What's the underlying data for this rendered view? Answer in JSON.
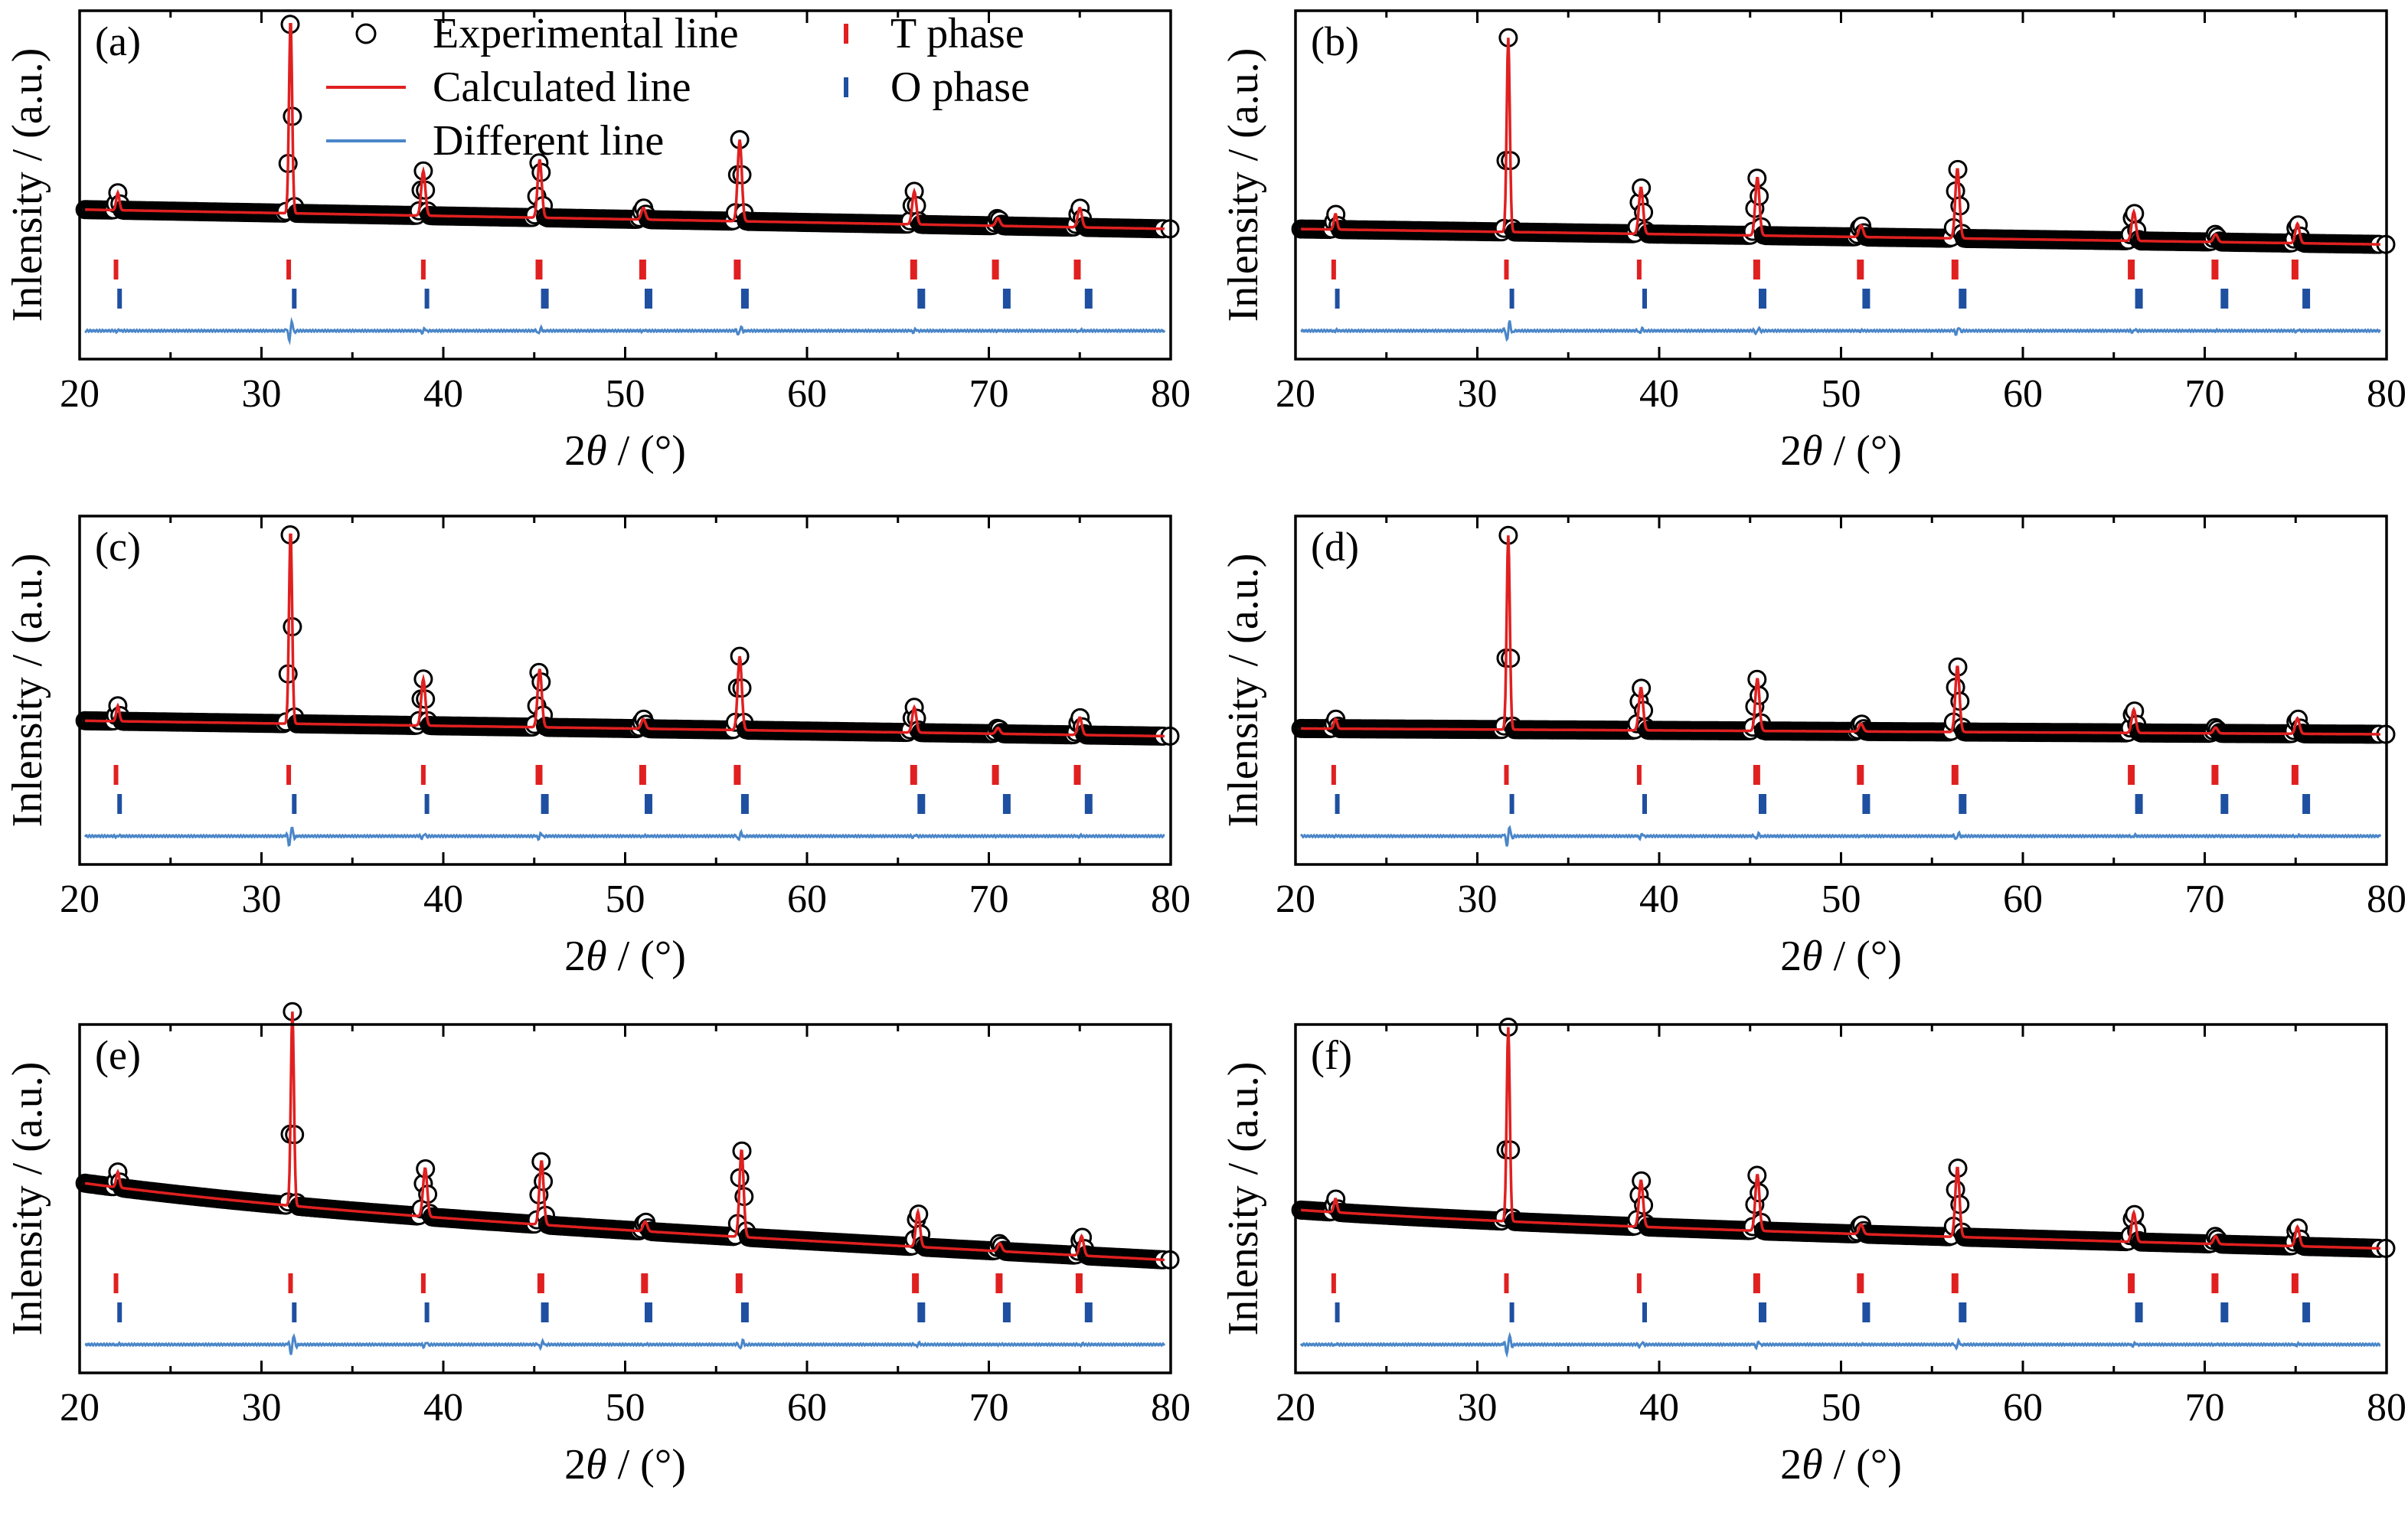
{
  "colors": {
    "experimental": "#000000",
    "calculated": "#e02020",
    "difference": "#4a86c8",
    "t_phase": "#e02020",
    "o_phase": "#1f4fa0"
  },
  "chart_data": [
    {
      "panel": "(a)",
      "type": "line",
      "xlabel_prefix": "2",
      "xlabel_theta": "θ",
      "xlabel_suffix": " / (°)",
      "ylabel": "Inlensity / (a.u.)",
      "xlim": [
        20,
        80
      ],
      "xticks": [
        "20",
        "30",
        "40",
        "50",
        "60",
        "70",
        "80"
      ],
      "legend": {
        "placement": "top",
        "entries": [
          {
            "marker": "circle",
            "label": "Experimental line"
          },
          {
            "marker": "line-red",
            "label": "Calculated line"
          },
          {
            "marker": "line-blue",
            "label": "Different line"
          },
          {
            "marker": "tick-red",
            "label": "T phase"
          },
          {
            "marker": "tick-blue",
            "label": "O phase"
          }
        ]
      },
      "background": {
        "start": 0.6,
        "end": 0.5,
        "decay": 0.0
      },
      "peaks": [
        [
          22.1,
          0.09
        ],
        [
          31.6,
          1.0
        ],
        [
          38.9,
          0.23
        ],
        [
          45.3,
          0.3
        ],
        [
          51.0,
          0.06
        ],
        [
          56.3,
          0.42
        ],
        [
          65.9,
          0.17
        ],
        [
          70.5,
          0.04
        ],
        [
          75.0,
          0.1
        ]
      ],
      "t_phase": [
        22.0,
        31.5,
        38.9,
        45.2,
        50.9,
        56.1,
        65.8,
        70.3,
        74.8
      ],
      "o_phase": [
        22.2,
        31.8,
        39.1,
        45.5,
        51.2,
        56.5,
        66.2,
        70.9,
        75.4
      ]
    },
    {
      "panel": "(b)",
      "type": "line",
      "xlabel_prefix": "2",
      "xlabel_theta": "θ",
      "xlabel_suffix": " / (°)",
      "ylabel": "Inlensity / (a.u.)",
      "xlim": [
        20,
        80
      ],
      "xticks": [
        "20",
        "30",
        "40",
        "50",
        "60",
        "70",
        "80"
      ],
      "background": {
        "start": 0.5,
        "end": 0.42,
        "decay": 0.0
      },
      "peaks": [
        [
          22.2,
          0.08
        ],
        [
          31.7,
          1.0
        ],
        [
          39.0,
          0.24
        ],
        [
          45.4,
          0.3
        ],
        [
          51.1,
          0.06
        ],
        [
          56.4,
          0.36
        ],
        [
          66.1,
          0.15
        ],
        [
          70.6,
          0.04
        ],
        [
          75.1,
          0.1
        ]
      ],
      "t_phase": [
        22.1,
        31.6,
        38.9,
        45.3,
        51.0,
        56.2,
        65.9,
        70.5,
        74.9
      ],
      "o_phase": [
        22.3,
        31.9,
        39.2,
        45.6,
        51.3,
        56.6,
        66.3,
        71.0,
        75.5
      ]
    },
    {
      "panel": "(c)",
      "type": "line",
      "xlabel_prefix": "2",
      "xlabel_theta": "θ",
      "xlabel_suffix": " / (°)",
      "ylabel": "Inlensity / (a.u.)",
      "xlim": [
        20,
        80
      ],
      "xticks": [
        "20",
        "30",
        "40",
        "50",
        "60",
        "70",
        "80"
      ],
      "background": {
        "start": 0.57,
        "end": 0.49,
        "decay": 0.0
      },
      "peaks": [
        [
          22.1,
          0.08
        ],
        [
          31.6,
          1.0
        ],
        [
          38.9,
          0.24
        ],
        [
          45.3,
          0.3
        ],
        [
          51.0,
          0.05
        ],
        [
          56.3,
          0.38
        ],
        [
          65.9,
          0.13
        ],
        [
          70.5,
          0.03
        ],
        [
          75.0,
          0.09
        ]
      ],
      "t_phase": [
        22.0,
        31.5,
        38.9,
        45.2,
        50.9,
        56.1,
        65.8,
        70.3,
        74.8
      ],
      "o_phase": [
        22.2,
        31.8,
        39.1,
        45.5,
        51.2,
        56.5,
        66.2,
        70.9,
        75.4
      ]
    },
    {
      "panel": "(d)",
      "type": "line",
      "xlabel_prefix": "2",
      "xlabel_theta": "θ",
      "xlabel_suffix": " / (°)",
      "ylabel": "Inlensity / (a.u.)",
      "xlim": [
        20,
        80
      ],
      "xticks": [
        "20",
        "30",
        "40",
        "50",
        "60",
        "70",
        "80"
      ],
      "background": {
        "start": 0.53,
        "end": 0.5,
        "decay": 0.0
      },
      "peaks": [
        [
          22.2,
          0.05
        ],
        [
          31.7,
          1.0
        ],
        [
          39.0,
          0.22
        ],
        [
          45.4,
          0.27
        ],
        [
          51.1,
          0.04
        ],
        [
          56.4,
          0.34
        ],
        [
          66.1,
          0.12
        ],
        [
          70.6,
          0.03
        ],
        [
          75.1,
          0.08
        ]
      ],
      "t_phase": [
        22.1,
        31.6,
        38.9,
        45.3,
        51.0,
        56.2,
        65.9,
        70.5,
        74.9
      ],
      "o_phase": [
        22.3,
        31.9,
        39.2,
        45.6,
        51.3,
        56.6,
        66.3,
        71.0,
        75.5
      ]
    },
    {
      "panel": "(e)",
      "type": "line",
      "xlabel_prefix": "2",
      "xlabel_theta": "θ",
      "xlabel_suffix": " / (°)",
      "ylabel": "Inlensity / (a.u.)",
      "xlim": [
        20,
        80
      ],
      "xticks": [
        "20",
        "30",
        "40",
        "50",
        "60",
        "70",
        "80"
      ],
      "background": {
        "start": 0.69,
        "end": 0.41,
        "decay": 0.12
      },
      "peaks": [
        [
          22.1,
          0.08
        ],
        [
          31.7,
          1.0
        ],
        [
          39.0,
          0.25
        ],
        [
          45.4,
          0.33
        ],
        [
          51.1,
          0.05
        ],
        [
          56.4,
          0.45
        ],
        [
          66.1,
          0.18
        ],
        [
          70.6,
          0.04
        ],
        [
          75.1,
          0.1
        ]
      ],
      "t_phase": [
        22.0,
        31.6,
        38.9,
        45.3,
        51.0,
        56.2,
        65.9,
        70.5,
        74.9
      ],
      "o_phase": [
        22.2,
        31.8,
        39.1,
        45.5,
        51.2,
        56.5,
        66.2,
        70.9,
        75.4
      ]
    },
    {
      "panel": "(f)",
      "type": "line",
      "xlabel_prefix": "2",
      "xlabel_theta": "θ",
      "xlabel_suffix": " / (°)",
      "ylabel": "Inlensity / (a.u.)",
      "xlim": [
        20,
        80
      ],
      "xticks": [
        "20",
        "30",
        "40",
        "50",
        "60",
        "70",
        "80"
      ],
      "background": {
        "start": 0.61,
        "end": 0.47,
        "decay": 0.06
      },
      "peaks": [
        [
          22.2,
          0.07
        ],
        [
          31.7,
          1.0
        ],
        [
          39.0,
          0.24
        ],
        [
          45.4,
          0.29
        ],
        [
          51.1,
          0.05
        ],
        [
          56.4,
          0.36
        ],
        [
          66.1,
          0.15
        ],
        [
          70.6,
          0.04
        ],
        [
          75.1,
          0.1
        ]
      ],
      "t_phase": [
        22.1,
        31.6,
        38.9,
        45.3,
        51.0,
        56.2,
        65.9,
        70.5,
        74.9
      ],
      "o_phase": [
        22.3,
        31.9,
        39.2,
        45.6,
        51.3,
        56.6,
        66.3,
        71.0,
        75.5
      ]
    }
  ]
}
